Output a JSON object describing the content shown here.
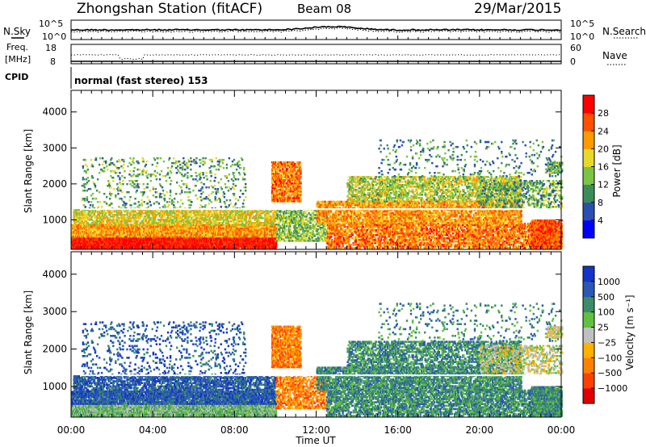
{
  "header": {
    "station": "Zhongshan Station (fitACF)",
    "beam": "Beam 08",
    "date": "29/Mar/2015"
  },
  "top_panels": {
    "nsky": {
      "label": "N.Sky",
      "right_label": "N.Search",
      "left_ticks": [
        "10^5",
        "10^0"
      ],
      "right_ticks": [
        "10^5",
        "10^0"
      ]
    },
    "freq": {
      "label_line1": "Freq.",
      "label_line2": "[MHz]",
      "left_ticks": [
        "18",
        "8"
      ],
      "right_ticks": [
        "60",
        "0"
      ],
      "right_label": "Nave"
    },
    "cpid": {
      "label": "CPID",
      "text": "normal (fast stereo) 153"
    }
  },
  "chart_data": [
    {
      "type": "heatmap",
      "title": "",
      "xlabel": "",
      "ylabel": "Slant Range [km]",
      "x_ticks": [
        "00:00",
        "04:00",
        "08:00",
        "12:00",
        "16:00",
        "20:00",
        "00:00"
      ],
      "xlim_hours": [
        0,
        24
      ],
      "ylim": [
        180,
        4600
      ],
      "y_ticks": [
        1000,
        2000,
        3000,
        4000
      ],
      "colorbar": {
        "label": "Power [dB]",
        "ticks": [
          "28",
          "24",
          "20",
          "16",
          "12",
          "8",
          "4"
        ],
        "range": [
          0,
          32
        ],
        "colors": [
          "#0000ff",
          "#2a4fb0",
          "#3c8c5a",
          "#7cc444",
          "#e8d82a",
          "#ff9a00",
          "#ff5000",
          "#ff0000"
        ]
      }
    },
    {
      "type": "heatmap",
      "title": "",
      "xlabel": "Time UT",
      "ylabel": "Slant Range [km]",
      "x_ticks": [
        "00:00",
        "04:00",
        "08:00",
        "12:00",
        "16:00",
        "20:00",
        "00:00"
      ],
      "xlim_hours": [
        0,
        24
      ],
      "ylim": [
        180,
        4600
      ],
      "y_ticks": [
        1000,
        2000,
        3000,
        4000
      ],
      "colorbar": {
        "label": "Velocity [m s⁻¹]",
        "ticks": [
          "1000",
          "500",
          "100",
          "25",
          "−25",
          "−100",
          "−500",
          "−1000"
        ],
        "colors": [
          "#1434c8",
          "#2a58b4",
          "#3c8c6a",
          "#60c040",
          "#c0c0c0",
          "#ffb000",
          "#ff8000",
          "#ff4000",
          "#e00000"
        ]
      }
    }
  ]
}
